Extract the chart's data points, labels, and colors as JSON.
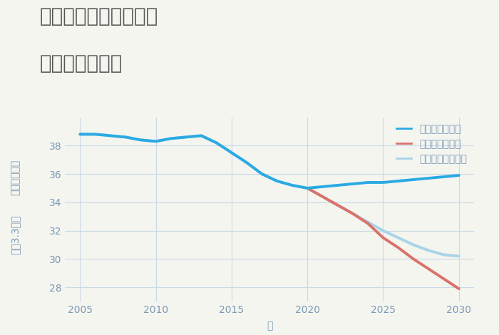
{
  "title_line1": "愛知県豊川市南千両の",
  "title_line2": "土地の価格推移",
  "xlabel": "年",
  "ylabel_top": "単価（万円）",
  "ylabel_bottom": "坪（3.3㎡）",
  "background_color": "#f5f5f0",
  "grid_color": "#c8d8e8",
  "ylim": [
    27,
    40
  ],
  "yticks": [
    28,
    30,
    32,
    34,
    36,
    38
  ],
  "xlim": [
    2004,
    2031
  ],
  "xticks": [
    2005,
    2010,
    2015,
    2020,
    2025,
    2030
  ],
  "good_scenario": {
    "label": "グッドシナリオ",
    "color": "#29aae3",
    "linewidth": 2.8,
    "x": [
      2005,
      2006,
      2007,
      2008,
      2009,
      2010,
      2011,
      2012,
      2013,
      2014,
      2015,
      2016,
      2017,
      2018,
      2019,
      2020,
      2021,
      2022,
      2023,
      2024,
      2025,
      2026,
      2027,
      2028,
      2029,
      2030
    ],
    "y": [
      38.8,
      38.8,
      38.7,
      38.6,
      38.4,
      38.3,
      38.5,
      38.6,
      38.7,
      38.2,
      37.5,
      36.8,
      36.0,
      35.5,
      35.2,
      35.0,
      35.1,
      35.2,
      35.3,
      35.4,
      35.4,
      35.5,
      35.6,
      35.7,
      35.8,
      35.9
    ]
  },
  "bad_scenario": {
    "label": "バッドシナリオ",
    "color": "#d9726a",
    "linewidth": 2.8,
    "x": [
      2020,
      2021,
      2022,
      2023,
      2024,
      2025,
      2026,
      2027,
      2028,
      2029,
      2030
    ],
    "y": [
      35.0,
      34.4,
      33.8,
      33.2,
      32.5,
      31.5,
      30.8,
      30.0,
      29.3,
      28.6,
      27.9
    ]
  },
  "normal_scenario": {
    "label": "ノーマルシナリオ",
    "color": "#a8d4e8",
    "linewidth": 2.8,
    "x": [
      2005,
      2006,
      2007,
      2008,
      2009,
      2010,
      2011,
      2012,
      2013,
      2014,
      2015,
      2016,
      2017,
      2018,
      2019,
      2020,
      2021,
      2022,
      2023,
      2024,
      2025,
      2026,
      2027,
      2028,
      2029,
      2030
    ],
    "y": [
      38.8,
      38.8,
      38.7,
      38.6,
      38.4,
      38.3,
      38.5,
      38.6,
      38.7,
      38.2,
      37.5,
      36.8,
      36.0,
      35.5,
      35.2,
      35.0,
      34.4,
      33.8,
      33.2,
      32.6,
      32.0,
      31.5,
      31.0,
      30.6,
      30.3,
      30.2
    ]
  },
  "title_fontsize": 20,
  "title_color": "#555555",
  "legend_fontsize": 10,
  "axis_label_fontsize": 10,
  "tick_label_fontsize": 10,
  "tick_color": "#7a9ab5"
}
